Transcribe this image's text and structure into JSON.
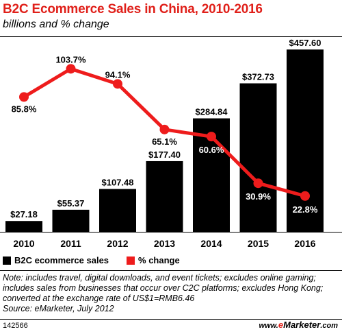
{
  "title": "B2C Ecommerce Sales in China, 2010-2016",
  "subtitle": "billions and % change",
  "chart_data": {
    "type": "bar",
    "categories": [
      "2010",
      "2011",
      "2012",
      "2013",
      "2014",
      "2015",
      "2016"
    ],
    "series": [
      {
        "name": "B2C ecommerce sales",
        "type": "bar",
        "color": "#000000",
        "values": [
          27.18,
          55.37,
          107.48,
          177.4,
          284.84,
          372.73,
          457.6
        ],
        "labels": [
          "$27.18",
          "$55.37",
          "$107.48",
          "$177.40",
          "$284.84",
          "$372.73",
          "$457.60"
        ]
      },
      {
        "name": "% change",
        "type": "line",
        "color": "#ee1c1c",
        "values": [
          85.8,
          103.7,
          94.1,
          65.1,
          60.6,
          30.9,
          22.8
        ],
        "labels": [
          "85.8%",
          "103.7%",
          "94.1%",
          "65.1%",
          "60.6%",
          "30.9%",
          "22.8%"
        ]
      }
    ],
    "bar_axis": [
      0,
      470
    ],
    "line_axis": [
      0,
      120
    ],
    "grid": false,
    "legend": "bottom-left"
  },
  "legend": {
    "bars": "B2C ecommerce sales",
    "line": "% change"
  },
  "note": "Note: includes travel, digital downloads, and event tickets; excludes online gaming; includes sales from businesses that occur over C2C platforms; excludes Hong Kong; converted at the exchange rate of US$1=RMB6.46",
  "source": "Source: eMarketer, July 2012",
  "chart_id": "142566",
  "brand": {
    "prefix": "www.",
    "dot": "e",
    "name": "Marketer",
    "suffix": ".com"
  }
}
